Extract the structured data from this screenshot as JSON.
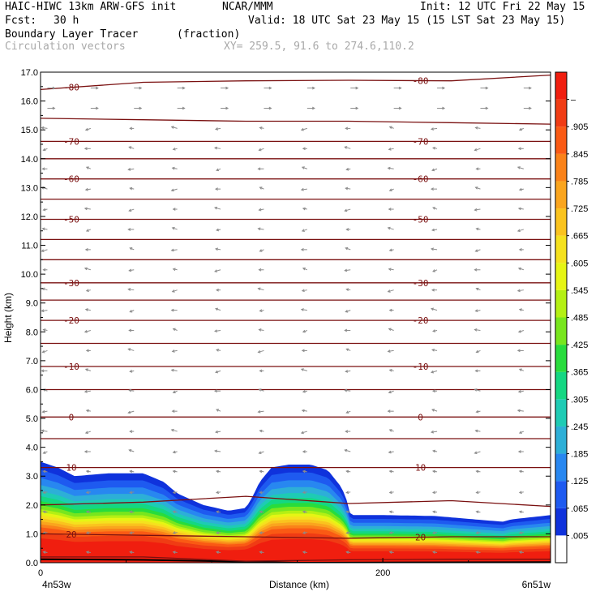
{
  "header": {
    "model": "HAIC-HIWC 13km ARW-GFS init",
    "org": "NCAR/MMM",
    "init": "Init: 12 UTC Fri 22 May 15",
    "fcst_label": "Fcst:",
    "fcst_value": "30 h",
    "valid": "Valid: 18 UTC Sat 23 May 15 (15 LST Sat 23 May 15)",
    "field": "Boundary Layer Tracer",
    "units": "(fraction)",
    "overlay": "Circulation vectors",
    "xy": "XY= 259.5, 91.6 to 274.6,110.2"
  },
  "colors": {
    "contour": "#7a1010",
    "vector": "#8c8c8c"
  },
  "chart_data": {
    "type": "heatmap",
    "xlabel": "Distance (km)",
    "ylabel": "Height (km)",
    "xlim": [
      0,
      298
    ],
    "ylim": [
      0,
      17
    ],
    "x_tick_labels": [
      {
        "value": 0,
        "text": "0"
      },
      {
        "value": 200,
        "text": "200"
      }
    ],
    "y_ticks": [
      "0.0",
      "1.0",
      "2.0",
      "3.0",
      "4.0",
      "5.0",
      "6.0",
      "7.0",
      "8.0",
      "9.0",
      "10.0",
      "11.0",
      "12.0",
      "13.0",
      "14.0",
      "15.0",
      "16.0",
      "17.0"
    ],
    "endpoint_left": "4n53w",
    "endpoint_right": "6n51w",
    "colorbar": {
      "labels": [
        ".005",
        ".065",
        ".125",
        ".185",
        ".245",
        ".305",
        ".365",
        ".425",
        ".485",
        ".545",
        ".605",
        ".665",
        ".725",
        ".785",
        ".845",
        ".905",
        "–"
      ],
      "colors": [
        "#ffffff",
        "#0f32dc",
        "#1e5af0",
        "#2887f0",
        "#2dafd7",
        "#1ecbb4",
        "#14d782",
        "#28dc3c",
        "#78e61e",
        "#b4f014",
        "#e6f514",
        "#f5e11e",
        "#fac31e",
        "#faa51e",
        "#fa8219",
        "#fa5a14",
        "#f03c14",
        "#f01e0f"
      ]
    },
    "tracer_profile": {
      "x_km": [
        0,
        10,
        20,
        40,
        60,
        72,
        80,
        95,
        110,
        120,
        124,
        128,
        135,
        145,
        158,
        168,
        176,
        180,
        181,
        200,
        230,
        270,
        275,
        298
      ],
      "top_km": [
        3.5,
        3.3,
        3.0,
        3.1,
        3.1,
        2.8,
        2.4,
        2.0,
        1.8,
        1.9,
        2.3,
        2.8,
        3.3,
        3.4,
        3.4,
        3.2,
        2.6,
        2.0,
        1.65,
        1.65,
        1.62,
        1.42,
        1.5,
        1.65
      ]
    },
    "temperature_contours": [
      {
        "label": "-80",
        "levels_km": [
          16.4,
          16.65,
          16.7,
          16.72,
          16.7,
          16.9
        ]
      },
      {
        "label": "",
        "levels_km": [
          15.4,
          15.35,
          15.3,
          15.3,
          15.25,
          15.2
        ]
      },
      {
        "label": "-70",
        "levels_km": [
          14.6,
          14.6,
          14.6,
          14.6,
          14.6,
          14.6
        ]
      },
      {
        "label": "",
        "levels_km": [
          14.0,
          14.0,
          14.0,
          14.0,
          14.0,
          14.0
        ]
      },
      {
        "label": "-60",
        "levels_km": [
          13.3,
          13.3,
          13.3,
          13.3,
          13.3,
          13.3
        ]
      },
      {
        "label": "",
        "levels_km": [
          12.6,
          12.6,
          12.6,
          12.6,
          12.6,
          12.6
        ]
      },
      {
        "label": "-50",
        "levels_km": [
          11.9,
          11.9,
          11.9,
          11.9,
          11.9,
          11.9
        ]
      },
      {
        "label": "",
        "levels_km": [
          11.2,
          11.2,
          11.2,
          11.2,
          11.2,
          11.2
        ]
      },
      {
        "label": "",
        "levels_km": [
          10.5,
          10.5,
          10.5,
          10.5,
          10.5,
          10.5
        ]
      },
      {
        "label": "-30",
        "levels_km": [
          9.7,
          9.7,
          9.7,
          9.7,
          9.7,
          9.7
        ]
      },
      {
        "label": "",
        "levels_km": [
          9.1,
          9.1,
          9.1,
          9.1,
          9.1,
          9.1
        ]
      },
      {
        "label": "-20",
        "levels_km": [
          8.4,
          8.4,
          8.4,
          8.4,
          8.4,
          8.4
        ]
      },
      {
        "label": "",
        "levels_km": [
          7.6,
          7.6,
          7.6,
          7.6,
          7.6,
          7.6
        ]
      },
      {
        "label": "-10",
        "levels_km": [
          6.8,
          6.8,
          6.8,
          6.8,
          6.8,
          6.8
        ]
      },
      {
        "label": "",
        "levels_km": [
          6.0,
          6.0,
          6.0,
          6.0,
          6.0,
          6.0
        ]
      },
      {
        "label": "0",
        "levels_km": [
          5.05,
          5.05,
          5.05,
          5.05,
          5.05,
          5.05
        ]
      },
      {
        "label": "",
        "levels_km": [
          4.3,
          4.3,
          4.3,
          4.3,
          4.3,
          4.3
        ]
      },
      {
        "label": "10",
        "levels_km": [
          3.3,
          3.3,
          3.3,
          3.3,
          3.3,
          3.3
        ]
      },
      {
        "label": "",
        "levels_km": [
          2.0,
          2.1,
          2.3,
          2.05,
          2.15,
          1.95
        ]
      },
      {
        "label": "20",
        "levels_km": [
          1.0,
          0.95,
          0.9,
          0.85,
          0.9,
          0.9
        ]
      },
      {
        "label": "",
        "levels_km": [
          0.2,
          0.2,
          0.05,
          0.1,
          0.12,
          0.12
        ]
      }
    ],
    "contour_x_km": [
      0,
      60,
      120,
      180,
      240,
      298
    ]
  }
}
